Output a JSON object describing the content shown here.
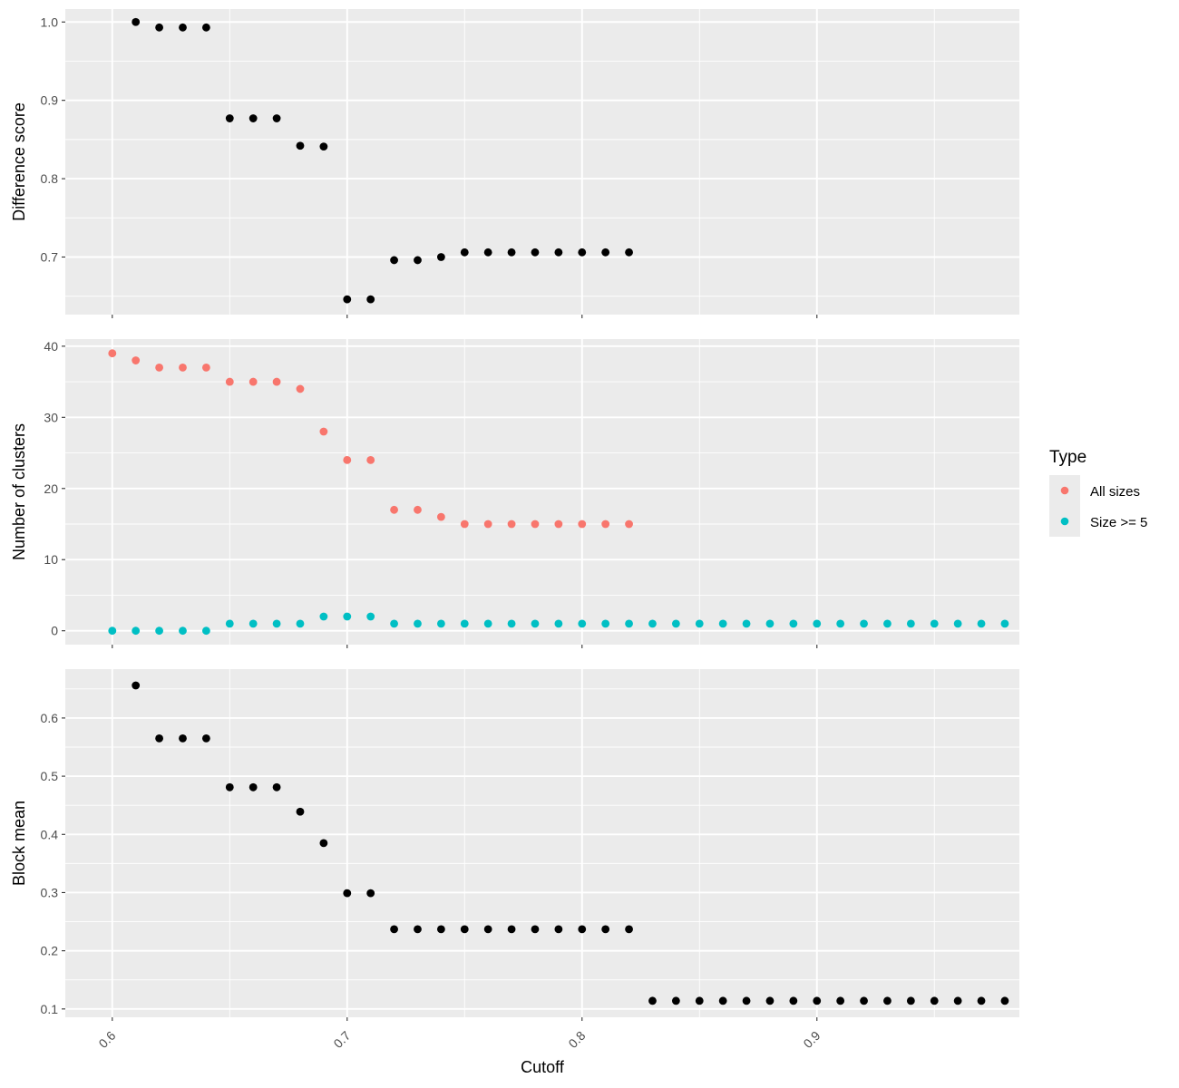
{
  "chart_data": {
    "type": "scatter",
    "xlabel": "Cutoff",
    "x_ticks": [
      0.6,
      0.7,
      0.8,
      0.9
    ],
    "x_tick_labels": [
      "0.6",
      "0.7",
      "0.8",
      "0.9"
    ],
    "xlim": [
      0.58,
      0.9862
    ],
    "legend": {
      "title": "Type",
      "position": "right",
      "entries": [
        {
          "label": "All sizes",
          "color": "#F8766D"
        },
        {
          "label": "Size >= 5",
          "color": "#00BFC4"
        }
      ]
    },
    "panels": [
      {
        "id": "difference",
        "ylabel": "Difference score",
        "ylim": [
          0.6265,
          1.0165
        ],
        "y_ticks": [
          0.7,
          0.8,
          0.9,
          1.0
        ],
        "y_tick_labels": [
          "0.7",
          "0.8",
          "0.9",
          "1.0"
        ],
        "series": [
          {
            "color": "#000000",
            "x": [
              0.61,
              0.62,
              0.63,
              0.64,
              0.65,
              0.66,
              0.67,
              0.68,
              0.69,
              0.7,
              0.71,
              0.72,
              0.73,
              0.74,
              0.75,
              0.76,
              0.77,
              0.78,
              0.79,
              0.8,
              0.81,
              0.82
            ],
            "y": [
              1.0,
              0.993,
              0.993,
              0.993,
              0.877,
              0.877,
              0.877,
              0.842,
              0.841,
              0.646,
              0.646,
              0.696,
              0.696,
              0.7,
              0.706,
              0.706,
              0.706,
              0.706,
              0.706,
              0.706,
              0.706,
              0.706
            ]
          }
        ]
      },
      {
        "id": "clusters",
        "ylabel": "Number of clusters",
        "ylim": [
          -1.95,
          41.0
        ],
        "y_ticks": [
          0,
          10,
          20,
          30,
          40
        ],
        "y_tick_labels": [
          "0",
          "10",
          "20",
          "30",
          "40"
        ],
        "series": [
          {
            "name": "All sizes",
            "color": "#F8766D",
            "x": [
              0.6,
              0.61,
              0.62,
              0.63,
              0.64,
              0.65,
              0.66,
              0.67,
              0.68,
              0.69,
              0.7,
              0.71,
              0.72,
              0.73,
              0.74,
              0.75,
              0.76,
              0.77,
              0.78,
              0.79,
              0.8,
              0.81,
              0.82
            ],
            "y": [
              39,
              38,
              37,
              37,
              37,
              35,
              35,
              35,
              34,
              28,
              24,
              24,
              17,
              17,
              16,
              15,
              15,
              15,
              15,
              15,
              15,
              15,
              15
            ]
          },
          {
            "name": "Size >= 5",
            "color": "#00BFC4",
            "x": [
              0.6,
              0.61,
              0.62,
              0.63,
              0.64,
              0.65,
              0.66,
              0.67,
              0.68,
              0.69,
              0.7,
              0.71,
              0.72,
              0.73,
              0.74,
              0.75,
              0.76,
              0.77,
              0.78,
              0.79,
              0.8,
              0.81,
              0.82,
              0.83,
              0.84,
              0.85,
              0.86,
              0.87,
              0.88,
              0.89,
              0.9,
              0.91,
              0.92,
              0.93,
              0.94,
              0.95,
              0.96,
              0.97,
              0.98
            ],
            "y": [
              0,
              0,
              0,
              0,
              0,
              1,
              1,
              1,
              1,
              2,
              2,
              2,
              1,
              1,
              1,
              1,
              1,
              1,
              1,
              1,
              1,
              1,
              1,
              1,
              1,
              1,
              1,
              1,
              1,
              1,
              1,
              1,
              1,
              1,
              1,
              1,
              1,
              1,
              1
            ]
          }
        ]
      },
      {
        "id": "block-mean",
        "ylabel": "Block mean",
        "ylim": [
          0.0857,
          0.684
        ],
        "y_ticks": [
          0.1,
          0.2,
          0.3,
          0.4,
          0.5,
          0.6
        ],
        "y_tick_labels": [
          "0.1",
          "0.2",
          "0.3",
          "0.4",
          "0.5",
          "0.6"
        ],
        "series": [
          {
            "color": "#000000",
            "x": [
              0.61,
              0.62,
              0.63,
              0.64,
              0.65,
              0.66,
              0.67,
              0.68,
              0.69,
              0.7,
              0.71,
              0.72,
              0.73,
              0.74,
              0.75,
              0.76,
              0.77,
              0.78,
              0.79,
              0.8,
              0.81,
              0.82,
              0.83,
              0.84,
              0.85,
              0.86,
              0.87,
              0.88,
              0.89,
              0.9,
              0.91,
              0.92,
              0.93,
              0.94,
              0.95,
              0.96,
              0.97,
              0.98
            ],
            "y": [
              0.656,
              0.565,
              0.565,
              0.565,
              0.481,
              0.481,
              0.481,
              0.439,
              0.385,
              0.299,
              0.299,
              0.237,
              0.237,
              0.237,
              0.237,
              0.237,
              0.237,
              0.237,
              0.237,
              0.237,
              0.237,
              0.237,
              0.114,
              0.114,
              0.114,
              0.114,
              0.114,
              0.114,
              0.114,
              0.114,
              0.114,
              0.114,
              0.114,
              0.114,
              0.114,
              0.114,
              0.114,
              0.114
            ]
          }
        ]
      }
    ]
  }
}
